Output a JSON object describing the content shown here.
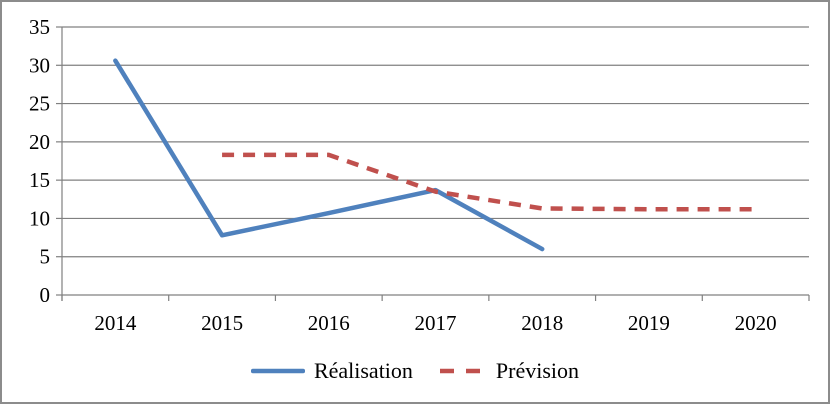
{
  "chart_data": {
    "type": "line",
    "title": "",
    "xlabel": "",
    "ylabel": "",
    "categories": [
      "2014",
      "2015",
      "2016",
      "2017",
      "2018",
      "2019",
      "2020"
    ],
    "series": [
      {
        "name": "Réalisation",
        "color": "#4F81BD",
        "line_style": "solid",
        "values": [
          30.6,
          7.8,
          10.7,
          13.7,
          6,
          null,
          null
        ]
      },
      {
        "name": "Prévision",
        "color": "#C0504D",
        "line_style": "dashed",
        "values": [
          null,
          18.3,
          18.3,
          13.5,
          11.3,
          11.2,
          11.2
        ]
      }
    ],
    "ylim": [
      0,
      35
    ],
    "y_ticks": [
      0,
      5,
      10,
      15,
      20,
      25,
      30,
      35
    ],
    "grid": "horizontal",
    "legend_position": "bottom-center",
    "grid_color": "#808080",
    "axis_color": "#808080",
    "text_color": "#000000",
    "background": "#FFFFFF",
    "frame_color": "#8C8C8C"
  }
}
